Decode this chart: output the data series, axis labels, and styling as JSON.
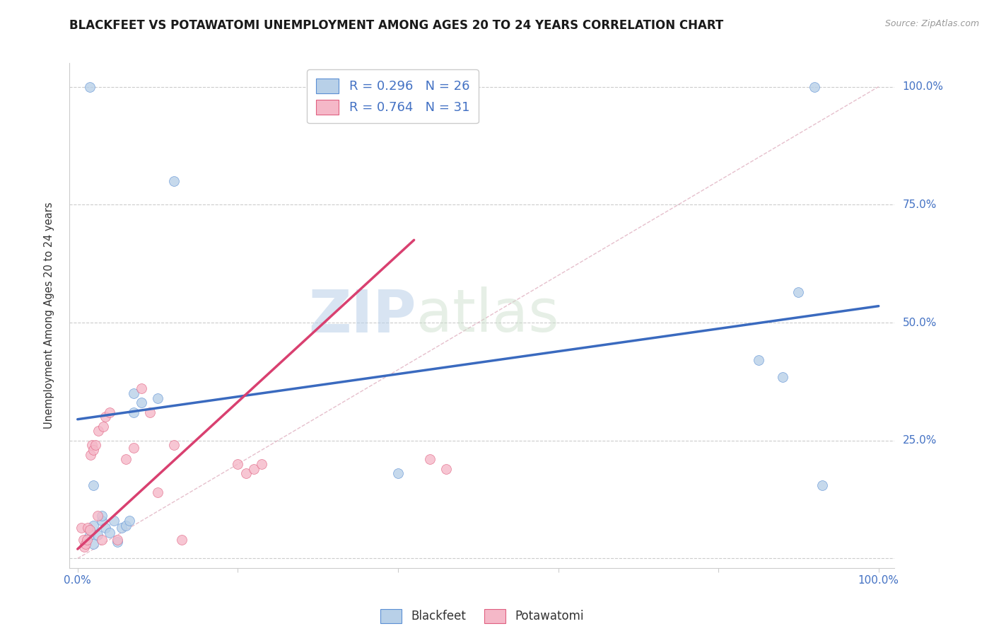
{
  "title": "BLACKFEET VS POTAWATOMI UNEMPLOYMENT AMONG AGES 20 TO 24 YEARS CORRELATION CHART",
  "source": "Source: ZipAtlas.com",
  "ylabel": "Unemployment Among Ages 20 to 24 years",
  "xlim": [
    -0.01,
    1.02
  ],
  "ylim": [
    -0.02,
    1.05
  ],
  "watermark_zip": "ZIP",
  "watermark_atlas": "atlas",
  "blackfeet_color": "#b8d0e8",
  "potawatomi_color": "#f5b8c8",
  "blackfeet_edge_color": "#5b8fd4",
  "potawatomi_edge_color": "#e06080",
  "blackfeet_line_color": "#3a6abf",
  "potawatomi_line_color": "#d94070",
  "diagonal_color": "#e0b0c0",
  "legend_r_blackfeet": "R = 0.296",
  "legend_n_blackfeet": "N = 26",
  "legend_r_potawatomi": "R = 0.764",
  "legend_n_potawatomi": "N = 31",
  "blackfeet_x": [
    0.015,
    0.02,
    0.02,
    0.025,
    0.03,
    0.03,
    0.035,
    0.04,
    0.045,
    0.05,
    0.055,
    0.06,
    0.065,
    0.07,
    0.08,
    0.1,
    0.12,
    0.4,
    0.85,
    0.88,
    0.9,
    0.92,
    0.015,
    0.93,
    0.02,
    0.07
  ],
  "blackfeet_y": [
    0.05,
    0.07,
    0.03,
    0.05,
    0.08,
    0.09,
    0.065,
    0.055,
    0.08,
    0.035,
    0.065,
    0.07,
    0.08,
    0.31,
    0.33,
    0.34,
    0.8,
    0.18,
    0.42,
    0.385,
    0.565,
    1.0,
    1.0,
    0.155,
    0.155,
    0.35
  ],
  "potawatomi_x": [
    0.005,
    0.007,
    0.008,
    0.01,
    0.012,
    0.013,
    0.015,
    0.016,
    0.018,
    0.02,
    0.022,
    0.025,
    0.026,
    0.03,
    0.032,
    0.035,
    0.04,
    0.05,
    0.06,
    0.07,
    0.08,
    0.09,
    0.1,
    0.12,
    0.13,
    0.2,
    0.21,
    0.22,
    0.23,
    0.44,
    0.46
  ],
  "potawatomi_y": [
    0.065,
    0.04,
    0.025,
    0.03,
    0.04,
    0.065,
    0.06,
    0.22,
    0.24,
    0.23,
    0.24,
    0.09,
    0.27,
    0.04,
    0.28,
    0.3,
    0.31,
    0.04,
    0.21,
    0.235,
    0.36,
    0.31,
    0.14,
    0.24,
    0.04,
    0.2,
    0.18,
    0.19,
    0.2,
    0.21,
    0.19
  ],
  "blackfeet_trend_x": [
    0.0,
    1.0
  ],
  "blackfeet_trend_y": [
    0.295,
    0.535
  ],
  "potawatomi_trend_x": [
    0.0,
    0.42
  ],
  "potawatomi_trend_y": [
    0.02,
    0.675
  ],
  "grid_color": "#cccccc",
  "title_fontsize": 12,
  "axis_color": "#4472c4",
  "background_color": "#ffffff",
  "marker_size": 100
}
